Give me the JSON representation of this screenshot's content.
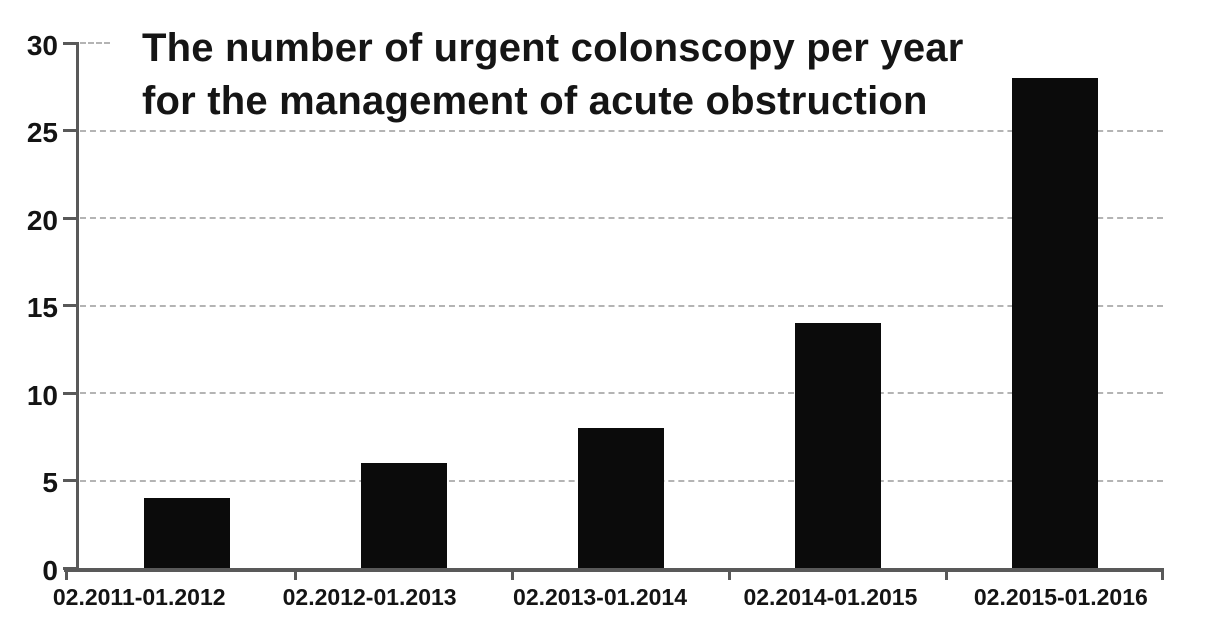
{
  "chart_data": {
    "type": "bar",
    "title": "The number of urgent colonscopy per year for the management of acute obstruction",
    "title_lines": [
      "The number of urgent colonscopy per year",
      "for the management of acute obstruction"
    ],
    "categories": [
      "02.2011-01.2012",
      "02.2012-01.2013",
      "02.2013-01.2014",
      "02.2014-01.2015",
      "02.2015-01.2016"
    ],
    "values": [
      4,
      6,
      8,
      14,
      28
    ],
    "xlabel": "",
    "ylabel": "",
    "ylim": [
      0,
      30
    ],
    "yticks": [
      0,
      5,
      10,
      15,
      20,
      25,
      30
    ],
    "grid": "horizontal-dashed",
    "legend": "none",
    "colors": {
      "bar": "#0b0b0b",
      "axis": "#595959",
      "gridline": "#b4b4b4",
      "text": "#141414",
      "background": "#ffffff"
    }
  }
}
